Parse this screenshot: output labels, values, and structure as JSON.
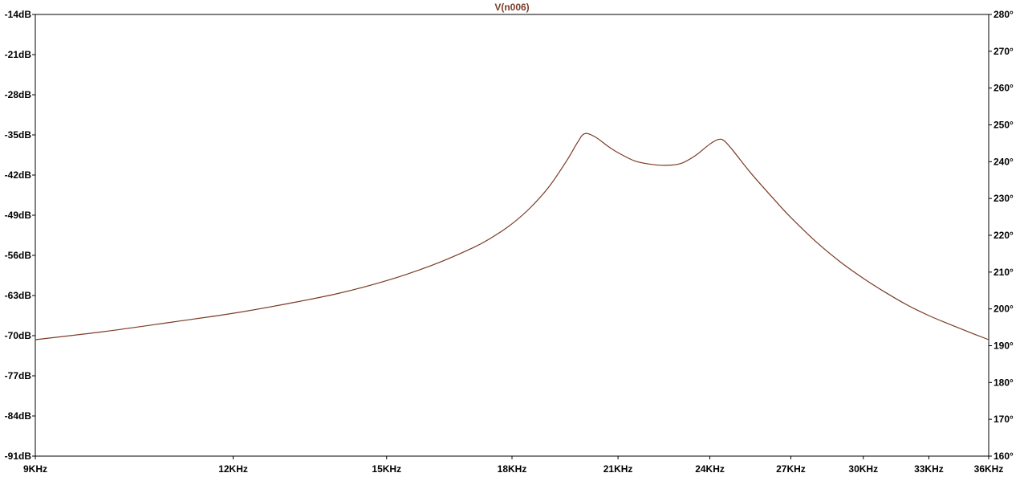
{
  "chart_data": {
    "type": "line",
    "title": "V(n006)",
    "xscale": "log",
    "xlim": [
      9000,
      36000
    ],
    "ylim": [
      -91,
      -14
    ],
    "ylim_right": [
      160,
      280
    ],
    "grid": false,
    "x_ticks": [
      "9KHz",
      "12KHz",
      "15KHz",
      "18KHz",
      "21KHz",
      "24KHz",
      "27KHz",
      "30KHz",
      "33KHz",
      "36KHz"
    ],
    "x_tick_values": [
      9000,
      12000,
      15000,
      18000,
      21000,
      24000,
      27000,
      30000,
      33000,
      36000
    ],
    "y_ticks_left": [
      "-14dB",
      "-21dB",
      "-28dB",
      "-35dB",
      "-42dB",
      "-49dB",
      "-56dB",
      "-63dB",
      "-70dB",
      "-77dB",
      "-84dB",
      "-91dB"
    ],
    "y_tick_values_left": [
      -14,
      -21,
      -28,
      -35,
      -42,
      -49,
      -56,
      -63,
      -70,
      -77,
      -84,
      -91
    ],
    "y_ticks_right": [
      "280°",
      "270°",
      "260°",
      "250°",
      "240°",
      "230°",
      "220°",
      "210°",
      "200°",
      "190°",
      "180°",
      "170°",
      "160°"
    ],
    "y_tick_values_right": [
      280,
      270,
      260,
      250,
      240,
      230,
      220,
      210,
      200,
      190,
      180,
      170,
      160
    ],
    "series": [
      {
        "name": "V(n006)",
        "color": "#7a3b25",
        "x": [
          9000,
          10000,
          11000,
          12000,
          13000,
          14000,
          15000,
          16000,
          17000,
          17500,
          18000,
          18500,
          19000,
          19500,
          19800,
          20000,
          20300,
          20700,
          21000,
          21500,
          22000,
          22500,
          23000,
          23500,
          24000,
          24300,
          24500,
          24800,
          25500,
          26500,
          27000,
          28000,
          29000,
          30000,
          31000,
          32000,
          33000,
          34000,
          35000,
          36000
        ],
        "y": [
          -70.7,
          -69.2,
          -67.6,
          -66.1,
          -64.4,
          -62.6,
          -60.4,
          -57.8,
          -54.7,
          -52.8,
          -50.5,
          -47.6,
          -44.0,
          -39.4,
          -36.3,
          -34.8,
          -35.3,
          -37.0,
          -38.1,
          -39.5,
          -40.1,
          -40.3,
          -40.0,
          -38.6,
          -36.6,
          -35.8,
          -36.0,
          -37.6,
          -41.8,
          -47.0,
          -49.4,
          -53.6,
          -57.1,
          -60.0,
          -62.5,
          -64.7,
          -66.5,
          -68.0,
          -69.4,
          -70.7
        ]
      }
    ]
  }
}
